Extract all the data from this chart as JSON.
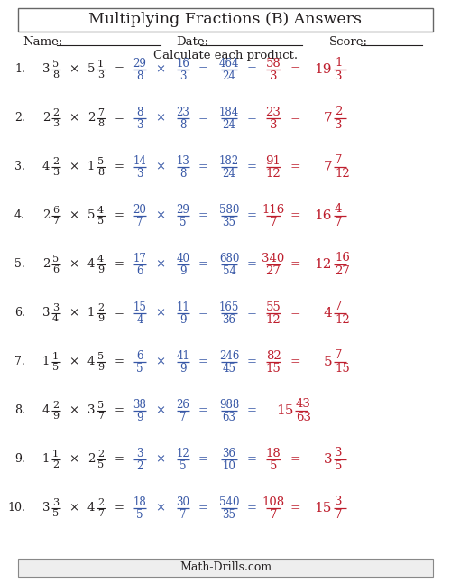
{
  "title": "Multiplying Fractions (B) Answers",
  "subtitle": "Calculate each product.",
  "footer": "Math-Drills.com",
  "color_black": "#231f20",
  "color_blue": "#3757a6",
  "color_red": "#be1e2d",
  "problems": [
    {
      "num": "1.",
      "m1_whole": "3",
      "m1_num": "5",
      "m1_den": "8",
      "m2_whole": "5",
      "m2_num": "1",
      "m2_den": "3",
      "i1_num": "29",
      "i1_den": "8",
      "i2_num": "16",
      "i2_den": "3",
      "prod_num": "464",
      "prod_den": "24",
      "simp_num": "58",
      "simp_den": "3",
      "ans_whole": "19",
      "ans_num": "1",
      "ans_den": "3",
      "no_simp": false
    },
    {
      "num": "2.",
      "m1_whole": "2",
      "m1_num": "2",
      "m1_den": "3",
      "m2_whole": "2",
      "m2_num": "7",
      "m2_den": "8",
      "i1_num": "8",
      "i1_den": "3",
      "i2_num": "23",
      "i2_den": "8",
      "prod_num": "184",
      "prod_den": "24",
      "simp_num": "23",
      "simp_den": "3",
      "ans_whole": "7",
      "ans_num": "2",
      "ans_den": "3",
      "no_simp": false
    },
    {
      "num": "3.",
      "m1_whole": "4",
      "m1_num": "2",
      "m1_den": "3",
      "m2_whole": "1",
      "m2_num": "5",
      "m2_den": "8",
      "i1_num": "14",
      "i1_den": "3",
      "i2_num": "13",
      "i2_den": "8",
      "prod_num": "182",
      "prod_den": "24",
      "simp_num": "91",
      "simp_den": "12",
      "ans_whole": "7",
      "ans_num": "7",
      "ans_den": "12",
      "no_simp": false
    },
    {
      "num": "4.",
      "m1_whole": "2",
      "m1_num": "6",
      "m1_den": "7",
      "m2_whole": "5",
      "m2_num": "4",
      "m2_den": "5",
      "i1_num": "20",
      "i1_den": "7",
      "i2_num": "29",
      "i2_den": "5",
      "prod_num": "580",
      "prod_den": "35",
      "simp_num": "116",
      "simp_den": "7",
      "ans_whole": "16",
      "ans_num": "4",
      "ans_den": "7",
      "no_simp": false
    },
    {
      "num": "5.",
      "m1_whole": "2",
      "m1_num": "5",
      "m1_den": "6",
      "m2_whole": "4",
      "m2_num": "4",
      "m2_den": "9",
      "i1_num": "17",
      "i1_den": "6",
      "i2_num": "40",
      "i2_den": "9",
      "prod_num": "680",
      "prod_den": "54",
      "simp_num": "340",
      "simp_den": "27",
      "ans_whole": "12",
      "ans_num": "16",
      "ans_den": "27",
      "no_simp": false
    },
    {
      "num": "6.",
      "m1_whole": "3",
      "m1_num": "3",
      "m1_den": "4",
      "m2_whole": "1",
      "m2_num": "2",
      "m2_den": "9",
      "i1_num": "15",
      "i1_den": "4",
      "i2_num": "11",
      "i2_den": "9",
      "prod_num": "165",
      "prod_den": "36",
      "simp_num": "55",
      "simp_den": "12",
      "ans_whole": "4",
      "ans_num": "7",
      "ans_den": "12",
      "no_simp": false
    },
    {
      "num": "7.",
      "m1_whole": "1",
      "m1_num": "1",
      "m1_den": "5",
      "m2_whole": "4",
      "m2_num": "5",
      "m2_den": "9",
      "i1_num": "6",
      "i1_den": "5",
      "i2_num": "41",
      "i2_den": "9",
      "prod_num": "246",
      "prod_den": "45",
      "simp_num": "82",
      "simp_den": "15",
      "ans_whole": "5",
      "ans_num": "7",
      "ans_den": "15",
      "no_simp": false
    },
    {
      "num": "8.",
      "m1_whole": "4",
      "m1_num": "2",
      "m1_den": "9",
      "m2_whole": "3",
      "m2_num": "5",
      "m2_den": "7",
      "i1_num": "38",
      "i1_den": "9",
      "i2_num": "26",
      "i2_den": "7",
      "prod_num": "988",
      "prod_den": "63",
      "simp_num": "",
      "simp_den": "",
      "ans_whole": "15",
      "ans_num": "43",
      "ans_den": "63",
      "no_simp": true
    },
    {
      "num": "9.",
      "m1_whole": "1",
      "m1_num": "1",
      "m1_den": "2",
      "m2_whole": "2",
      "m2_num": "2",
      "m2_den": "5",
      "i1_num": "3",
      "i1_den": "2",
      "i2_num": "12",
      "i2_den": "5",
      "prod_num": "36",
      "prod_den": "10",
      "simp_num": "18",
      "simp_den": "5",
      "ans_whole": "3",
      "ans_num": "3",
      "ans_den": "5",
      "no_simp": false
    },
    {
      "num": "10.",
      "m1_whole": "3",
      "m1_num": "3",
      "m1_den": "5",
      "m2_whole": "4",
      "m2_num": "2",
      "m2_den": "7",
      "i1_num": "18",
      "i1_den": "5",
      "i2_num": "30",
      "i2_den": "7",
      "prod_num": "540",
      "prod_den": "35",
      "simp_num": "108",
      "simp_den": "7",
      "ans_whole": "15",
      "ans_num": "3",
      "ans_den": "7",
      "no_simp": false
    }
  ]
}
